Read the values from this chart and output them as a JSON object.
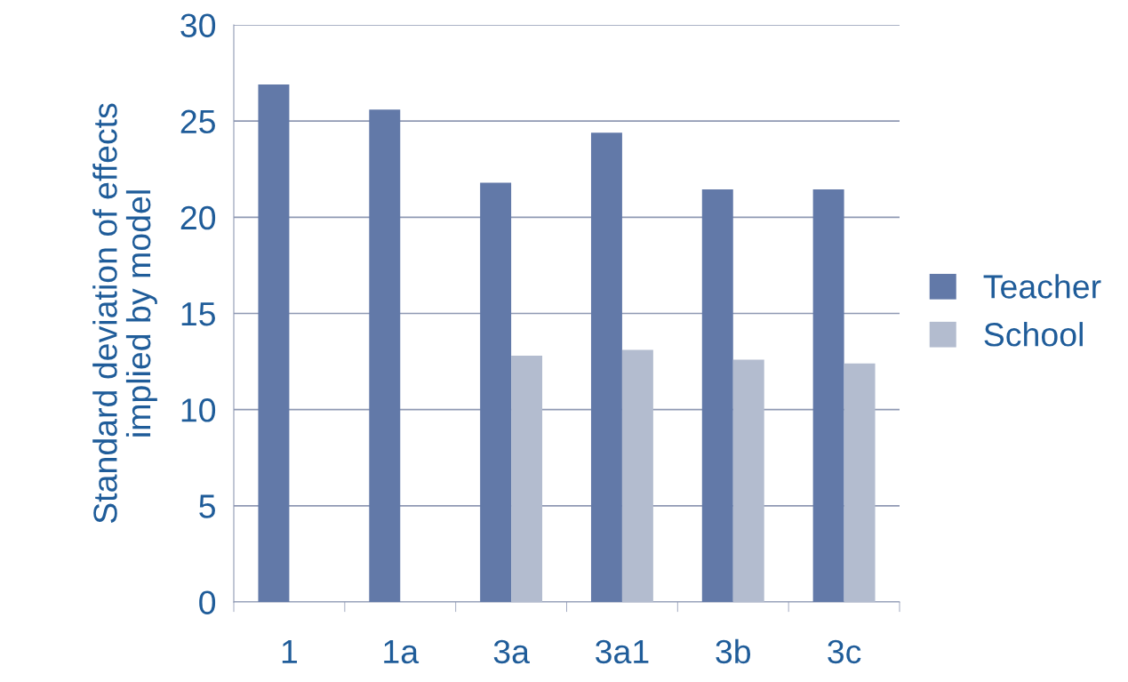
{
  "chart_data": {
    "type": "bar",
    "ylabel": "Standard deviation of effects\nimplied by model",
    "categories": [
      "1",
      "1a",
      "3a",
      "3a1",
      "3b",
      "3c"
    ],
    "series": [
      {
        "name": "Teacher",
        "color": "#6279a8",
        "values": [
          26.9,
          25.6,
          21.8,
          24.4,
          21.45,
          21.45
        ]
      },
      {
        "name": "School",
        "color": "#b3bccf",
        "values": [
          null,
          null,
          12.8,
          13.1,
          12.6,
          12.4
        ]
      }
    ],
    "ylim": [
      0,
      30
    ],
    "yticks": [
      0,
      5,
      10,
      15,
      20,
      25,
      30
    ],
    "grid": "y",
    "legend": "right"
  }
}
